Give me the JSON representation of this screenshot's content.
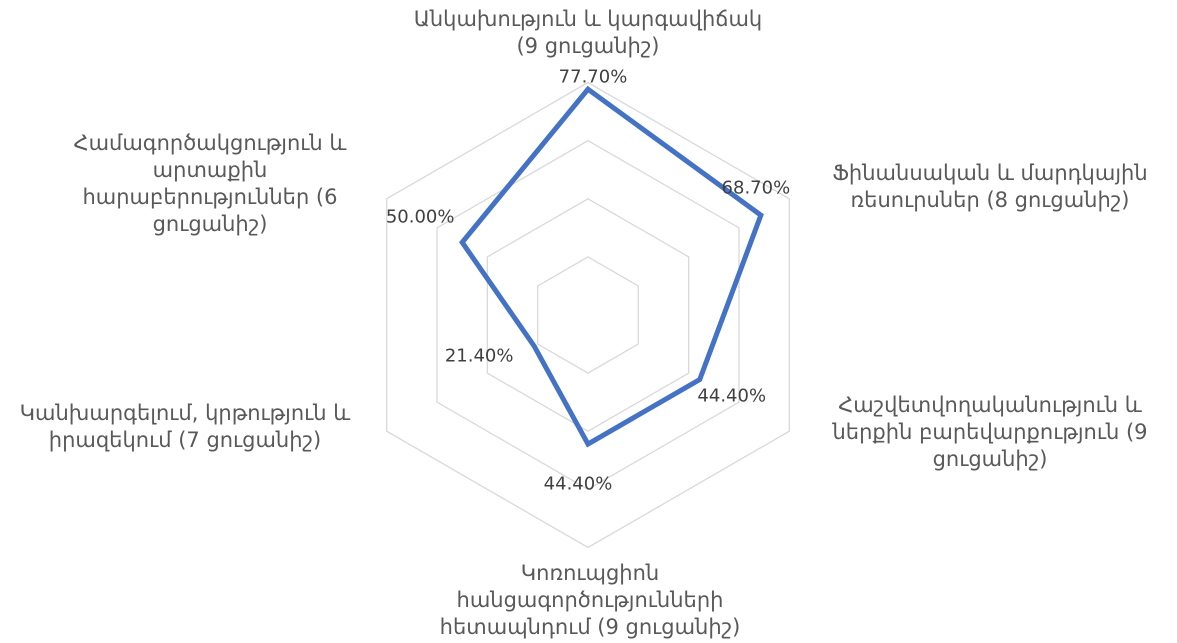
{
  "chart_data": {
    "type": "radar",
    "categories": [
      "Անկախություն և կարգավիճակ (9 ցուցանիշ)",
      "Ֆինանսական և մարդկային ռեսուրսներ (8 ցուցանիշ)",
      "Հաշվետվողականություն և ներքին բարեվարքություն (9 ցուցանիշ)",
      "Կոռուպցիոն հանցագործությունների հետապնդում (9 ցուցանիշ)",
      "Կանխարգելում,  կրթություն և  իրազեկում (7 ցուցանիշ)",
      "Համագործակցություն և արտաքին հարաբերություններ (6 ցուցանիշ)"
    ],
    "values": [
      77.7,
      68.7,
      44.4,
      44.4,
      21.4,
      50.0
    ],
    "value_labels": [
      "77.70%",
      "68.70%",
      "44.40%",
      "44.40%",
      "21.40%",
      "50.00%"
    ],
    "color": "#4472c4",
    "ylim": [
      0,
      85
    ],
    "yticks": [
      0,
      20,
      40,
      60,
      80
    ],
    "grid": true
  }
}
